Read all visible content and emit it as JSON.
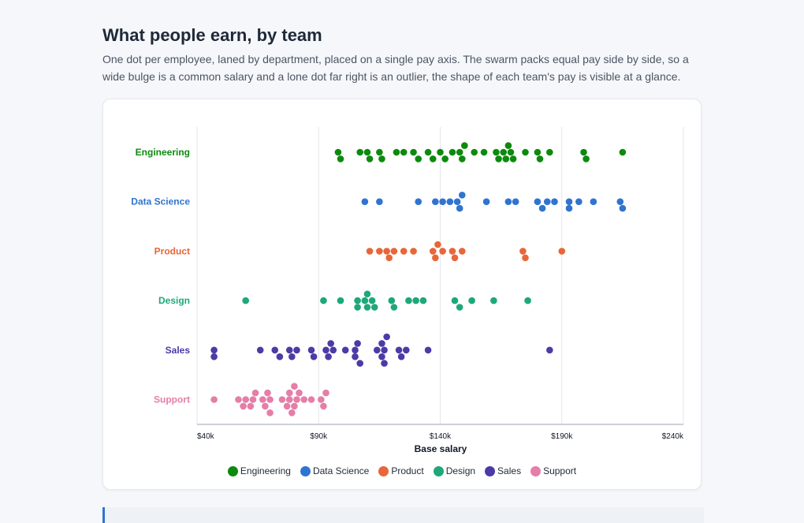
{
  "header": {
    "title": "What people earn, by team",
    "subtitle": "One dot per employee, laned by department, placed on a single pay axis. The swarm packs equal pay side by side, so a wide bulge is a common salary and a lone dot far right is an outlier, the shape of each team's pay is visible at a glance."
  },
  "chart_data": {
    "type": "scatter",
    "subtype": "beeswarm",
    "title": "",
    "xlabel": "Base salary",
    "ylabel": "",
    "xlim": [
      40000,
      240000
    ],
    "x_ticks": [
      40000,
      90000,
      140000,
      190000,
      240000
    ],
    "x_tick_labels": [
      "$40k",
      "$90k",
      "$140k",
      "$190k",
      "$240k"
    ],
    "grid": "vertical",
    "legend": "bottom-center",
    "series": [
      {
        "name": "Engineering",
        "color": "#0c8a0c",
        "values": [
          98000,
          99000,
          107000,
          110000,
          111000,
          115000,
          116000,
          122000,
          125000,
          129000,
          131000,
          135000,
          137000,
          140000,
          142000,
          145000,
          148000,
          149000,
          150000,
          154000,
          158000,
          163000,
          164000,
          166000,
          167000,
          168000,
          169000,
          170000,
          175000,
          180000,
          181000,
          185000,
          199000,
          200000,
          215000
        ]
      },
      {
        "name": "Data Science",
        "color": "#2f74d0",
        "values": [
          109000,
          115000,
          131000,
          138000,
          141000,
          144000,
          147000,
          148000,
          149000,
          159000,
          168000,
          171000,
          180000,
          182000,
          184000,
          187000,
          193000,
          193000,
          197000,
          203000,
          214000,
          215000
        ]
      },
      {
        "name": "Product",
        "color": "#e8663a",
        "values": [
          111000,
          115000,
          118000,
          119000,
          121000,
          125000,
          129000,
          137000,
          138000,
          139000,
          141000,
          145000,
          146000,
          149000,
          174000,
          175000,
          190000
        ]
      },
      {
        "name": "Design",
        "color": "#1ea87a",
        "values": [
          60000,
          92000,
          99000,
          106000,
          106000,
          109000,
          110000,
          110000,
          112000,
          113000,
          120000,
          121000,
          127000,
          130000,
          133000,
          146000,
          148000,
          153000,
          162000,
          176000
        ]
      },
      {
        "name": "Sales",
        "color": "#4b3ba6",
        "values": [
          47000,
          47000,
          66000,
          72000,
          74000,
          78000,
          79000,
          81000,
          87000,
          88000,
          93000,
          94000,
          95000,
          96000,
          101000,
          105000,
          105000,
          106000,
          107000,
          114000,
          116000,
          116000,
          117000,
          117000,
          118000,
          123000,
          124000,
          126000,
          135000,
          185000
        ]
      },
      {
        "name": "Support",
        "color": "#e57ea8",
        "values": [
          47000,
          57000,
          59000,
          60000,
          62000,
          63000,
          64000,
          67000,
          68000,
          69000,
          70000,
          70000,
          75000,
          77000,
          78000,
          78000,
          79000,
          80000,
          80000,
          81000,
          82000,
          84000,
          87000,
          91000,
          92000,
          93000
        ]
      }
    ]
  }
}
